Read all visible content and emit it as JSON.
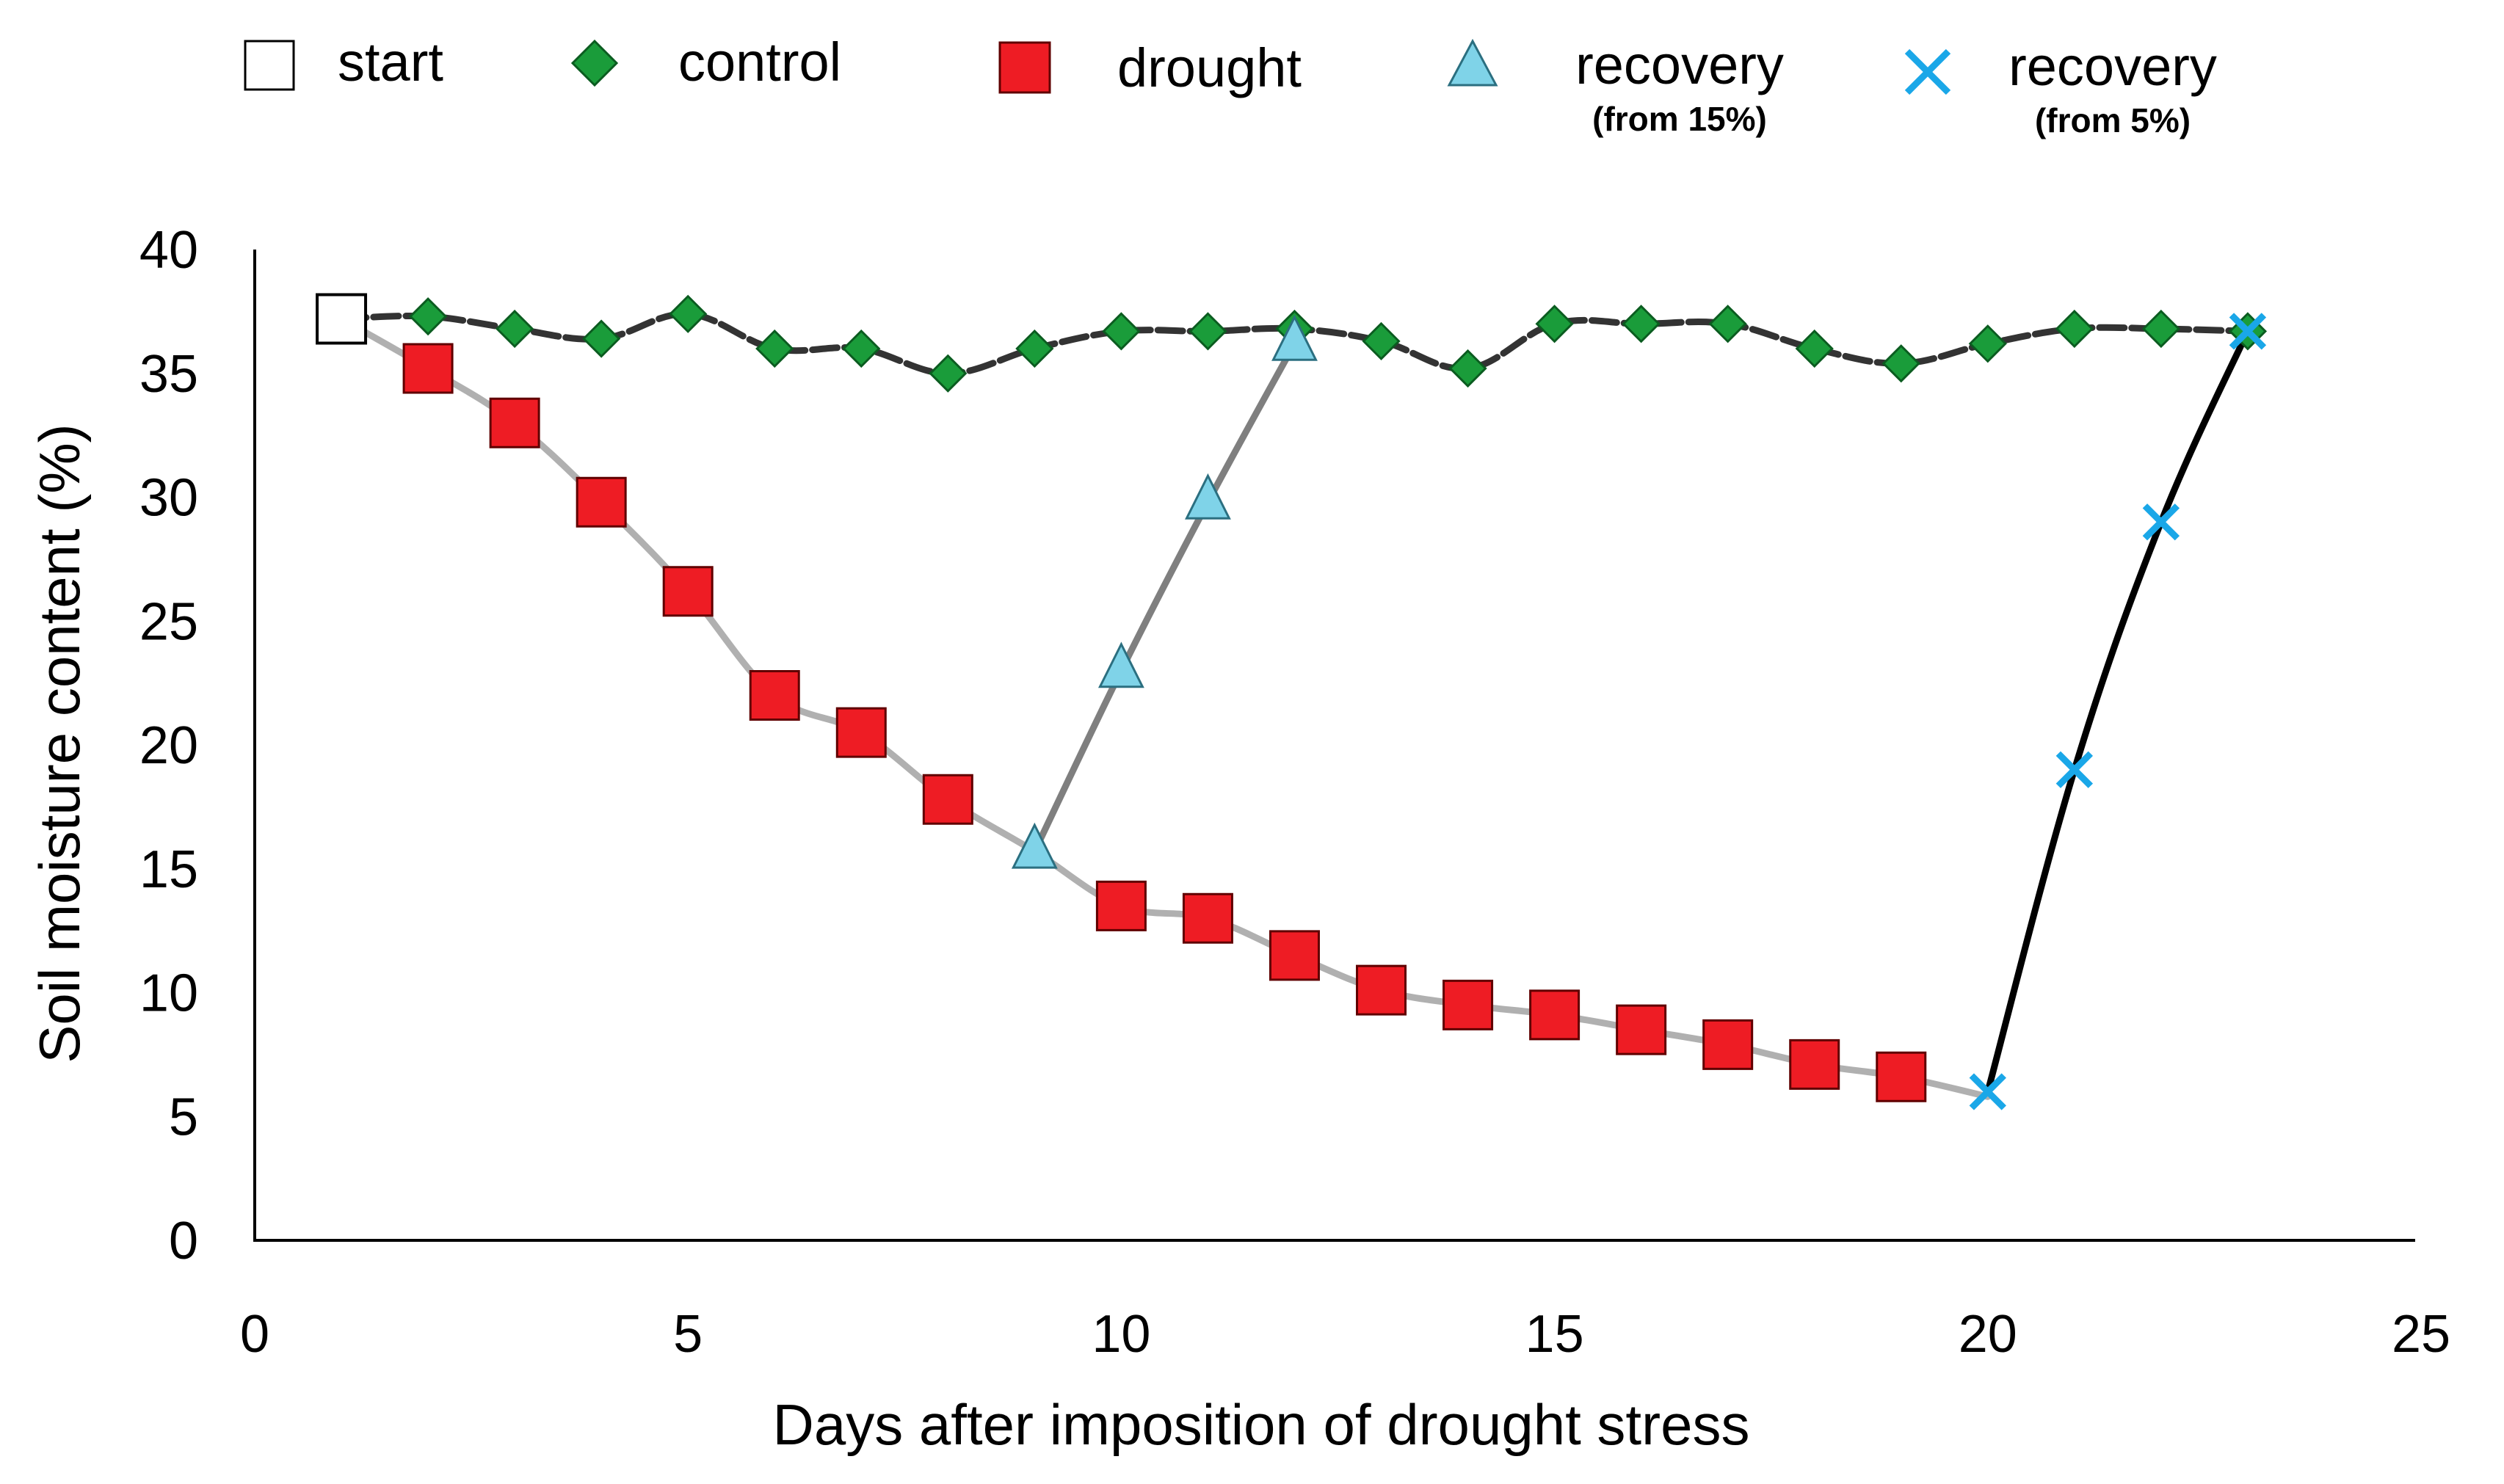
{
  "chart_data": {
    "type": "line",
    "title": "",
    "xlabel": "Days after imposition of drought stress",
    "ylabel": "Soil moisture content (%)",
    "xlim": [
      0,
      25
    ],
    "ylim": [
      0,
      40
    ],
    "x_ticks": [
      0,
      5,
      10,
      15,
      20,
      25
    ],
    "y_ticks": [
      0,
      5,
      10,
      15,
      20,
      25,
      30,
      35,
      40
    ],
    "grid": false,
    "legend_position": "top",
    "legend": [
      {
        "key": "start",
        "label": "start",
        "sublabel": ""
      },
      {
        "key": "control",
        "label": "control",
        "sublabel": ""
      },
      {
        "key": "drought",
        "label": "drought",
        "sublabel": ""
      },
      {
        "key": "recovery15",
        "label": "recovery",
        "sublabel": "(from 15%)"
      },
      {
        "key": "recovery5",
        "label": "recovery",
        "sublabel": "(from 5%)"
      }
    ],
    "series": [
      {
        "key": "control",
        "name": "control",
        "line_color": "#333333",
        "marker": "diamond",
        "marker_color": "#1a9c3a",
        "line_dashed": true,
        "x": [
          1,
          2,
          3,
          4,
          5,
          6,
          7,
          8,
          9,
          10,
          11,
          12,
          13,
          14,
          15,
          16,
          17,
          18,
          19,
          20,
          21,
          22,
          23
        ],
        "y": [
          37.2,
          37.3,
          36.8,
          36.4,
          37.4,
          36.0,
          36.0,
          35.0,
          36.0,
          36.7,
          36.7,
          36.8,
          36.3,
          35.2,
          37.0,
          37.0,
          37.0,
          36.0,
          35.4,
          36.2,
          36.8,
          36.8,
          36.7
        ],
        "marker_from": 1
      },
      {
        "key": "drought",
        "name": "drought",
        "line_color": "#b0b0b0",
        "marker": "square",
        "marker_color": "#ee1c24",
        "line_dashed": false,
        "x": [
          1,
          2,
          3,
          4,
          5,
          6,
          7,
          8,
          9,
          10,
          11,
          12,
          13,
          14,
          15,
          16,
          17,
          18,
          19,
          20
        ],
        "y": [
          37.2,
          35.2,
          33.0,
          29.8,
          26.2,
          22.0,
          20.5,
          17.8,
          15.7,
          13.5,
          13.0,
          11.5,
          10.1,
          9.5,
          9.1,
          8.5,
          7.9,
          7.1,
          6.6,
          5.8
        ],
        "marker_indices": [
          1,
          2,
          3,
          4,
          5,
          6,
          7,
          9,
          10,
          11,
          12,
          13,
          14,
          15,
          16,
          17,
          18
        ]
      },
      {
        "key": "recovery15",
        "name": "recovery (from 15%)",
        "line_color": "#7f7f7f",
        "marker": "triangle",
        "marker_color": "#7fd3e8",
        "line_dashed": false,
        "x": [
          9,
          10,
          11,
          12
        ],
        "y": [
          15.7,
          23.0,
          29.8,
          36.2
        ],
        "marker_from": 0
      },
      {
        "key": "recovery5",
        "name": "recovery (from 5%)",
        "line_color": "#000000",
        "marker": "x",
        "marker_color": "#1aa7e8",
        "line_dashed": false,
        "x": [
          20,
          21,
          22,
          23
        ],
        "y": [
          6.0,
          19.0,
          29.0,
          36.7
        ],
        "marker_from": 0
      }
    ],
    "start_point": {
      "x": 1,
      "y": 37.2,
      "marker": "square-open"
    }
  }
}
